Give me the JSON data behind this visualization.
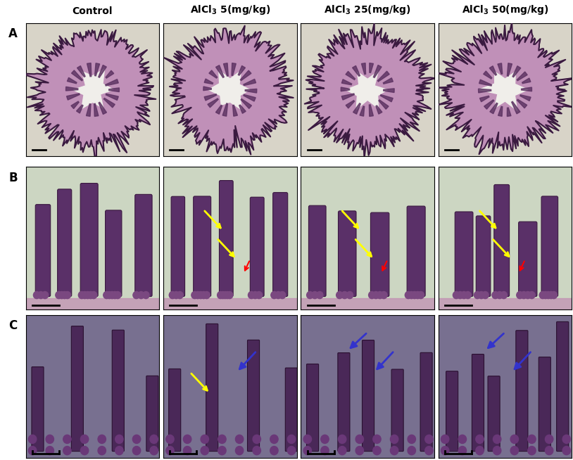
{
  "col_headers": [
    "Control",
    "AlCl₃ 5 (mg/kg)",
    "AlCl₃ 25 (mg/kg)",
    "AlCl₃ 50 (mg/kg)"
  ],
  "row_labels": [
    "A",
    "B",
    "C"
  ],
  "n_cols": 4,
  "n_rows": 3,
  "fig_width": 8.14,
  "fig_height": 6.54,
  "header_fontsize": 10,
  "row_label_fontsize": 12,
  "header_fontweight": "bold",
  "row_label_fontweight": "bold",
  "background_color": "#ffffff",
  "panel_bg_A": "#d8d4c8",
  "panel_bg_B": "#cdd6c4",
  "panel_bg_C": "#888090",
  "border_color": "#000000",
  "tissue_color_A": "#7b4b7a",
  "tissue_bg_A": "#e8e4d8",
  "tissue_color_B": "#6a3a6a",
  "tissue_bg_B": "#cdd6c4",
  "tissue_color_C": "#5a2a6a",
  "tissue_bg_C": "#787088",
  "yellow_arrow_color": "#ffff00",
  "red_arrow_color": "#ff0000",
  "blue_arrow_color": "#0000cc",
  "scalebar_color": "#000000"
}
